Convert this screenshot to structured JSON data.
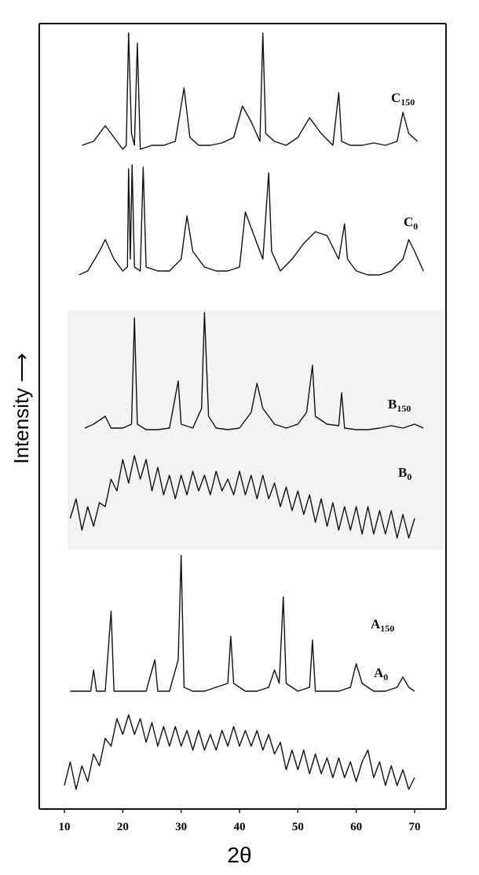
{
  "chart_data": {
    "type": "line",
    "xlabel": "2θ",
    "ylabel": "Intensity ⟶",
    "xlim": [
      10,
      70
    ],
    "xticks": [
      10,
      20,
      30,
      40,
      50,
      60,
      70
    ],
    "ylim": [
      0,
      100
    ],
    "series": [
      {
        "name": "C150",
        "color": "#111111",
        "x": [
          13,
          15,
          17,
          19,
          20,
          20.6,
          21,
          21.5,
          22,
          22.5,
          23,
          25,
          27,
          29,
          30.5,
          31.5,
          33,
          35,
          37,
          39,
          40.5,
          42,
          43.5,
          44,
          44.5,
          46,
          48,
          50,
          52,
          54,
          56,
          57,
          57.5,
          59,
          61,
          63,
          65,
          67,
          68,
          69,
          70.5
        ],
        "values": [
          84.5,
          85,
          87,
          85,
          84,
          84.5,
          98.8,
          86,
          84.5,
          97.5,
          84,
          84.5,
          84.5,
          85,
          91.8,
          85.5,
          84.5,
          84.5,
          84.8,
          85.5,
          89.5,
          87.5,
          85,
          98.8,
          86,
          85,
          84.5,
          85.5,
          88,
          86,
          84.5,
          91.2,
          85,
          84.5,
          84.5,
          84.8,
          84.5,
          85,
          88.7,
          86,
          85
        ]
      },
      {
        "name": "C0",
        "color": "#111111",
        "x": [
          12.5,
          14,
          16,
          17,
          18.5,
          20,
          20.8,
          21,
          21.3,
          21.6,
          22,
          23,
          23.5,
          24,
          26,
          28,
          30,
          31,
          32,
          34,
          36,
          38,
          40,
          41,
          42.5,
          44,
          45,
          45.5,
          47,
          49,
          51,
          53,
          55,
          57,
          58,
          58.5,
          60,
          62,
          64,
          66,
          68,
          69,
          70,
          71.5
        ],
        "values": [
          68,
          68.5,
          71,
          72.5,
          70,
          68.5,
          69,
          81.5,
          70,
          82,
          69,
          68.5,
          81.7,
          69,
          68.5,
          68.5,
          70,
          75.5,
          71,
          69,
          68.5,
          68.5,
          69,
          76,
          73,
          70,
          81,
          71,
          68.5,
          70,
          72,
          73.5,
          73,
          70,
          74.5,
          70,
          68.5,
          68,
          68,
          68.5,
          70,
          72.5,
          71,
          68.5
        ]
      },
      {
        "name": "B150",
        "color": "#111111",
        "x": [
          13.5,
          15,
          17,
          18,
          20,
          21.5,
          22,
          22.5,
          24,
          26,
          28,
          29.5,
          30,
          32,
          33.5,
          34,
          34.7,
          36,
          38,
          40,
          42,
          43,
          44,
          46,
          48,
          50,
          51.5,
          52.5,
          53,
          55,
          57,
          57.5,
          58,
          60,
          62,
          64,
          66,
          68,
          70,
          71.5
        ],
        "values": [
          48.5,
          49,
          50,
          48.5,
          48.5,
          49,
          62.5,
          49,
          48.3,
          48.3,
          48.5,
          54.5,
          49,
          48.5,
          51,
          63.2,
          50,
          48.5,
          48.3,
          48.5,
          50.5,
          54.2,
          51,
          49,
          48.5,
          49,
          50.5,
          56.5,
          50,
          49,
          48.8,
          53,
          48.5,
          48.3,
          48.3,
          48.5,
          48.8,
          48.5,
          49,
          48.5
        ]
      },
      {
        "name": "B0",
        "color": "#111111",
        "x": [
          11,
          12,
          13,
          14,
          15,
          16,
          17,
          18,
          19,
          20,
          21,
          22,
          23,
          24,
          25,
          26,
          27,
          28,
          29,
          30,
          31,
          32,
          33,
          34,
          35,
          36,
          37,
          38,
          39,
          40,
          41,
          42,
          43,
          44,
          45,
          46,
          47,
          48,
          49,
          50,
          51,
          52,
          53,
          54,
          55,
          56,
          57,
          58,
          59,
          60,
          61,
          62,
          63,
          64,
          65,
          66,
          67,
          68,
          69,
          70
        ],
        "values": [
          37,
          39.5,
          35.5,
          38.5,
          36,
          39,
          38.5,
          42,
          40.5,
          44.5,
          41.5,
          45,
          42,
          44.5,
          40.5,
          43.5,
          40,
          42.5,
          39.5,
          42.5,
          40,
          43,
          40.5,
          42.5,
          40,
          43,
          40.5,
          42,
          40,
          43,
          40,
          42.5,
          39.5,
          42.5,
          39.5,
          41.5,
          38.5,
          41,
          38,
          40.5,
          37.5,
          40,
          36.5,
          39.5,
          36,
          39,
          35.5,
          38.5,
          35.5,
          38.5,
          35,
          38.5,
          35,
          38,
          35,
          38,
          34.5,
          37.5,
          34.5,
          37
        ]
      },
      {
        "name": "A150",
        "color": "#111111",
        "x": [
          11,
          13,
          14.5,
          15,
          15.5,
          17,
          18,
          18.5,
          20,
          22,
          24,
          25.5,
          26,
          28,
          29.5,
          30,
          30.5,
          32,
          34,
          36,
          38,
          38.5,
          39,
          41,
          43,
          45,
          46,
          46.8,
          47.5,
          48,
          50,
          52,
          52.5,
          53,
          55,
          57,
          59,
          60,
          61,
          63,
          65,
          67,
          68,
          69,
          70
        ],
        "values": [
          15,
          15,
          15,
          17.7,
          15,
          15,
          25.2,
          15,
          15,
          15,
          15,
          19,
          15,
          15,
          19,
          32.3,
          15.5,
          15,
          15,
          15.5,
          16,
          22,
          16,
          15,
          15,
          15.5,
          17.7,
          16,
          27,
          16,
          15,
          15.5,
          21.5,
          15,
          15,
          15,
          15.5,
          18.5,
          16,
          15,
          15,
          15.5,
          16.8,
          15.5,
          15
        ]
      },
      {
        "name": "A0",
        "color": "#111111",
        "x": [
          10,
          11,
          12,
          13,
          14,
          15,
          16,
          17,
          18,
          19,
          20,
          21,
          22,
          23,
          24,
          25,
          26,
          27,
          28,
          29,
          30,
          31,
          32,
          33,
          34,
          35,
          36,
          37,
          38,
          39,
          40,
          41,
          42,
          43,
          44,
          45,
          46,
          47,
          48,
          49,
          50,
          51,
          52,
          53,
          54,
          55,
          56,
          57,
          58,
          59,
          60,
          61,
          62,
          63,
          64,
          65,
          66,
          67,
          68,
          69,
          70
        ],
        "values": [
          3,
          6,
          2.5,
          5.5,
          3.5,
          7,
          5.5,
          9,
          8,
          11.5,
          9.5,
          12,
          9.5,
          11.5,
          8.5,
          11,
          8,
          10.5,
          8,
          10.5,
          8,
          10,
          7.5,
          10,
          7.5,
          9.5,
          7.5,
          10,
          8,
          10.5,
          8,
          10,
          8,
          10,
          7.5,
          9.5,
          7,
          8.5,
          5,
          7.5,
          5,
          7.5,
          4.5,
          7,
          4.5,
          6.5,
          4,
          6.5,
          4,
          6,
          3.5,
          6,
          7.5,
          4,
          6,
          3,
          5.5,
          3,
          5,
          2.5,
          4
        ]
      }
    ]
  }
}
